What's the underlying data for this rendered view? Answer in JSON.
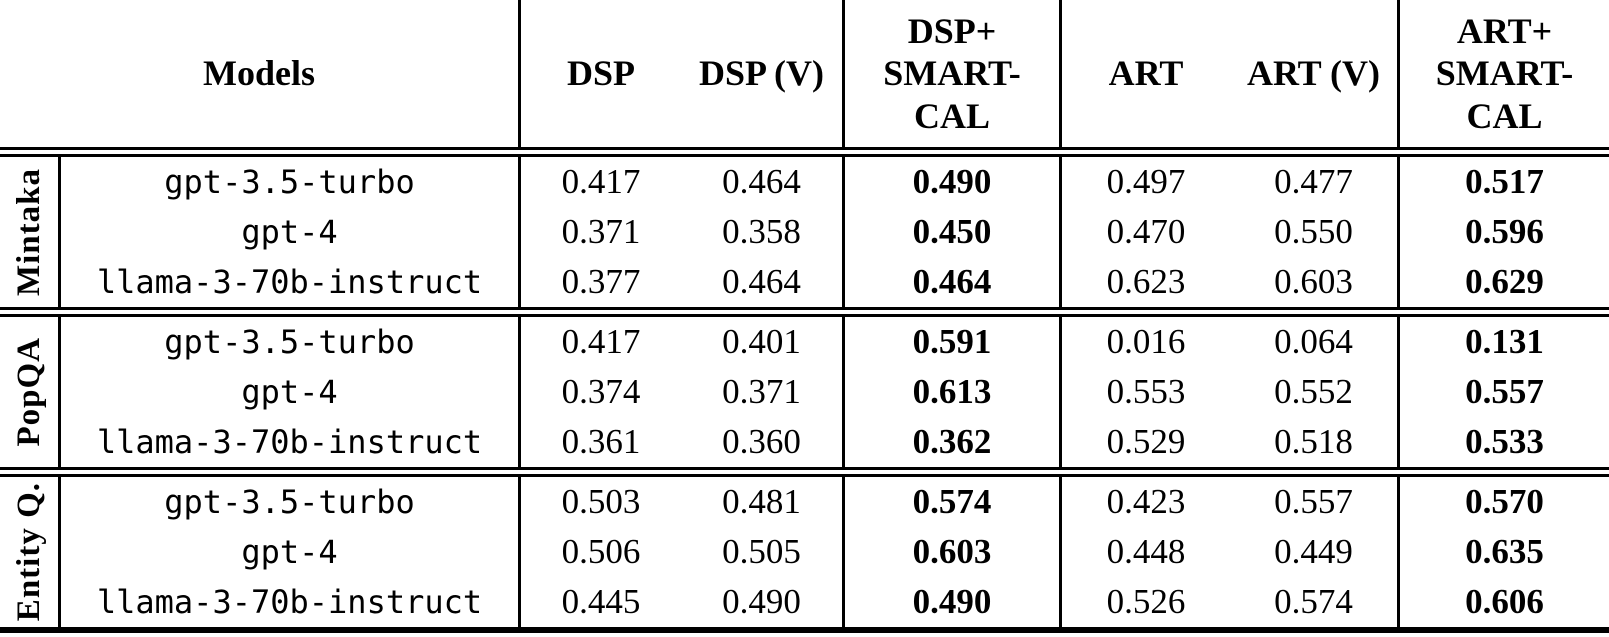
{
  "colors": {
    "text": "#000000",
    "background": "#ffffff",
    "rules": "#000000"
  },
  "table": {
    "header": {
      "models": "Models",
      "dsp": "DSP",
      "dsp_v": "DSP (V)",
      "dsp_smartcal": "DSP+\nSMART-\nCAL",
      "art": "ART",
      "art_v": "ART (V)",
      "art_smartcal": "ART+\nSMART-\nCAL"
    },
    "groups": [
      {
        "dataset": "Mintaka",
        "rows": [
          {
            "model": "gpt-3.5-turbo",
            "dsp": "0.417",
            "dsp_v": "0.464",
            "dsp_smartcal": "0.490",
            "art": "0.497",
            "art_v": "0.477",
            "art_smartcal": "0.517"
          },
          {
            "model": "gpt-4",
            "dsp": "0.371",
            "dsp_v": "0.358",
            "dsp_smartcal": "0.450",
            "art": "0.470",
            "art_v": "0.550",
            "art_smartcal": "0.596"
          },
          {
            "model": "llama-3-70b-instruct",
            "dsp": "0.377",
            "dsp_v": "0.464",
            "dsp_smartcal": "0.464",
            "art": "0.623",
            "art_v": "0.603",
            "art_smartcal": "0.629"
          }
        ]
      },
      {
        "dataset": "PopQA",
        "rows": [
          {
            "model": "gpt-3.5-turbo",
            "dsp": "0.417",
            "dsp_v": "0.401",
            "dsp_smartcal": "0.591",
            "art": "0.016",
            "art_v": "0.064",
            "art_smartcal": "0.131"
          },
          {
            "model": "gpt-4",
            "dsp": "0.374",
            "dsp_v": "0.371",
            "dsp_smartcal": "0.613",
            "art": "0.553",
            "art_v": "0.552",
            "art_smartcal": "0.557"
          },
          {
            "model": "llama-3-70b-instruct",
            "dsp": "0.361",
            "dsp_v": "0.360",
            "dsp_smartcal": "0.362",
            "art": "0.529",
            "art_v": "0.518",
            "art_smartcal": "0.533"
          }
        ]
      },
      {
        "dataset": "Entity Q.",
        "rows": [
          {
            "model": "gpt-3.5-turbo",
            "dsp": "0.503",
            "dsp_v": "0.481",
            "dsp_smartcal": "0.574",
            "art": "0.423",
            "art_v": "0.557",
            "art_smartcal": "0.570"
          },
          {
            "model": "gpt-4",
            "dsp": "0.506",
            "dsp_v": "0.505",
            "dsp_smartcal": "0.603",
            "art": "0.448",
            "art_v": "0.449",
            "art_smartcal": "0.635"
          },
          {
            "model": "llama-3-70b-instruct",
            "dsp": "0.445",
            "dsp_v": "0.490",
            "dsp_smartcal": "0.490",
            "art": "0.526",
            "art_v": "0.574",
            "art_smartcal": "0.606"
          }
        ]
      }
    ]
  }
}
